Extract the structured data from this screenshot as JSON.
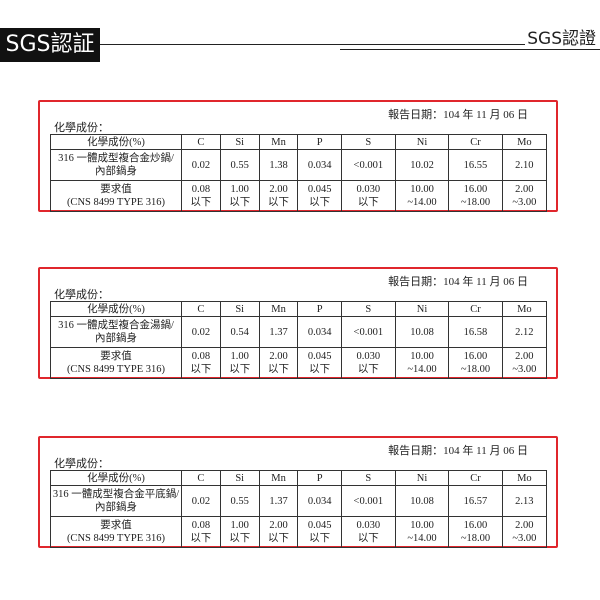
{
  "header": {
    "left_title": "SGS認証",
    "right_title": "SGS認證"
  },
  "reports": [
    {
      "date": "報告日期：104 年 11 月 06 日",
      "section": "化學成份：",
      "table": {
        "columns": [
          "化學成份(%)",
          "C",
          "Si",
          "Mn",
          "P",
          "S",
          "Ni",
          "Cr",
          "Mo"
        ],
        "rows": [
          [
            [
              "316 一體成型複合金炒鍋/",
              "內部鍋身"
            ],
            [
              "0.02"
            ],
            [
              "0.55"
            ],
            [
              "1.38"
            ],
            [
              "0.034"
            ],
            [
              "<0.001"
            ],
            [
              "10.02"
            ],
            [
              "16.55"
            ],
            [
              "2.10"
            ]
          ],
          [
            [
              "要求值",
              "(CNS 8499 TYPE 316)"
            ],
            [
              "0.08",
              "以下"
            ],
            [
              "1.00",
              "以下"
            ],
            [
              "2.00",
              "以下"
            ],
            [
              "0.045",
              "以下"
            ],
            [
              "0.030",
              "以下"
            ],
            [
              "10.00",
              "~14.00"
            ],
            [
              "16.00",
              "~18.00"
            ],
            [
              "2.00",
              "~3.00"
            ]
          ]
        ]
      }
    },
    {
      "date": "報告日期：104 年 11 月 06 日",
      "section": "化學成份：",
      "table": {
        "columns": [
          "化學成份(%)",
          "C",
          "Si",
          "Mn",
          "P",
          "S",
          "Ni",
          "Cr",
          "Mo"
        ],
        "rows": [
          [
            [
              "316 一體成型複合金湯鍋/",
              "內部鍋身"
            ],
            [
              "0.02"
            ],
            [
              "0.54"
            ],
            [
              "1.37"
            ],
            [
              "0.034"
            ],
            [
              "<0.001"
            ],
            [
              "10.08"
            ],
            [
              "16.58"
            ],
            [
              "2.12"
            ]
          ],
          [
            [
              "要求值",
              "(CNS 8499 TYPE 316)"
            ],
            [
              "0.08",
              "以下"
            ],
            [
              "1.00",
              "以下"
            ],
            [
              "2.00",
              "以下"
            ],
            [
              "0.045",
              "以下"
            ],
            [
              "0.030",
              "以下"
            ],
            [
              "10.00",
              "~14.00"
            ],
            [
              "16.00",
              "~18.00"
            ],
            [
              "2.00",
              "~3.00"
            ]
          ]
        ]
      }
    },
    {
      "date": "報告日期：104 年 11 月 06 日",
      "section": "化學成份：",
      "table": {
        "columns": [
          "化學成份(%)",
          "C",
          "Si",
          "Mn",
          "P",
          "S",
          "Ni",
          "Cr",
          "Mo"
        ],
        "rows": [
          [
            [
              "316 一體成型複合金平底鍋/",
              "內部鍋身"
            ],
            [
              "0.02"
            ],
            [
              "0.55"
            ],
            [
              "1.37"
            ],
            [
              "0.034"
            ],
            [
              "<0.001"
            ],
            [
              "10.08"
            ],
            [
              "16.57"
            ],
            [
              "2.13"
            ]
          ],
          [
            [
              "要求值",
              "(CNS 8499 TYPE 316)"
            ],
            [
              "0.08",
              "以下"
            ],
            [
              "1.00",
              "以下"
            ],
            [
              "2.00",
              "以下"
            ],
            [
              "0.045",
              "以下"
            ],
            [
              "0.030",
              "以下"
            ],
            [
              "10.00",
              "~14.00"
            ],
            [
              "16.00",
              "~18.00"
            ],
            [
              "2.00",
              "~3.00"
            ]
          ]
        ]
      }
    }
  ]
}
